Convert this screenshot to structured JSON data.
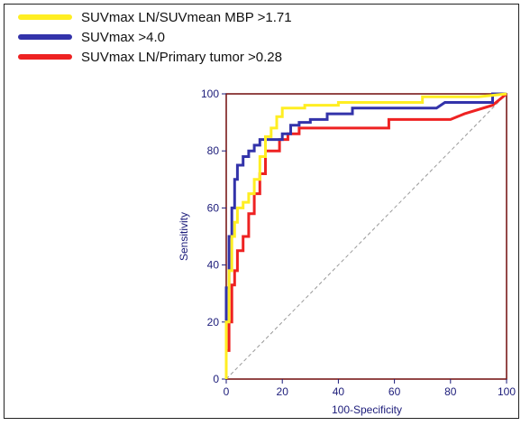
{
  "legend": [
    {
      "label": "SUVmax LN/SUVmean MBP >1.71",
      "color": "#ffee22"
    },
    {
      "label": "SUVmax >4.0",
      "color": "#3333aa"
    },
    {
      "label": "SUVmax LN/Primary tumor >0.28",
      "color": "#ee2222"
    }
  ],
  "chart_data": {
    "type": "line",
    "title": "",
    "xlabel": "100-Specificity",
    "ylabel": "Sensitivity",
    "xlim": [
      0,
      100
    ],
    "ylim": [
      0,
      100
    ],
    "xticks": [
      "0",
      "20",
      "40",
      "60",
      "80",
      "100"
    ],
    "yticks": [
      "0",
      "20",
      "40",
      "60",
      "80",
      "100"
    ],
    "grid": false,
    "reference_line": {
      "x": [
        0,
        100
      ],
      "y": [
        0,
        100
      ],
      "color": "#999999"
    },
    "series": [
      {
        "name": "SUVmax LN/SUVmean MBP >1.71",
        "color": "#ffee22",
        "x": [
          0,
          0,
          1,
          1,
          2,
          2,
          3,
          3,
          4,
          4,
          6,
          6,
          8,
          8,
          10,
          10,
          12,
          12,
          14,
          14,
          16,
          16,
          18,
          18,
          20,
          20,
          28,
          28,
          40,
          40,
          70,
          70,
          90,
          100
        ],
        "y": [
          0,
          20,
          20,
          38,
          38,
          50,
          50,
          55,
          55,
          60,
          60,
          62,
          62,
          65,
          65,
          70,
          70,
          78,
          78,
          85,
          85,
          88,
          88,
          92,
          92,
          95,
          95,
          96,
          96,
          97,
          97,
          99,
          99,
          100
        ]
      },
      {
        "name": "SUVmax >4.0",
        "color": "#3333aa",
        "x": [
          0,
          0,
          1,
          1,
          2,
          2,
          3,
          3,
          4,
          4,
          6,
          6,
          8,
          8,
          10,
          10,
          12,
          12,
          20,
          20,
          23,
          23,
          26,
          26,
          30,
          30,
          36,
          36,
          45,
          45,
          75,
          78,
          78,
          95,
          95,
          100
        ],
        "y": [
          0,
          32,
          32,
          50,
          50,
          60,
          60,
          70,
          70,
          75,
          75,
          78,
          78,
          80,
          80,
          82,
          82,
          84,
          84,
          86,
          86,
          89,
          89,
          90,
          90,
          91,
          91,
          93,
          93,
          95,
          95,
          97,
          97,
          97,
          100,
          100
        ]
      },
      {
        "name": "SUVmax LN/Primary tumor >0.28",
        "color": "#ee2222",
        "x": [
          0,
          0,
          1,
          1,
          2,
          2,
          3,
          3,
          4,
          4,
          6,
          6,
          8,
          8,
          10,
          10,
          12,
          12,
          14,
          14,
          19,
          19,
          22,
          22,
          26,
          26,
          58,
          58,
          80,
          85,
          85,
          95,
          100
        ],
        "y": [
          0,
          10,
          10,
          20,
          20,
          33,
          33,
          38,
          38,
          45,
          45,
          50,
          50,
          58,
          58,
          65,
          65,
          72,
          72,
          80,
          80,
          84,
          84,
          86,
          86,
          88,
          88,
          91,
          91,
          93,
          93,
          96,
          100
        ]
      }
    ]
  }
}
